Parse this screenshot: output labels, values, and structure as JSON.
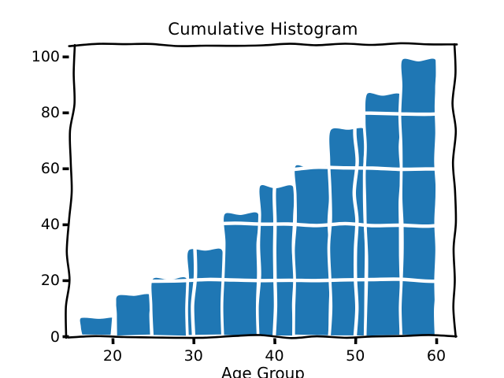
{
  "figure": {
    "title": "Cumulative Histogram",
    "xlabel": "Age Group",
    "colors": {
      "bar_fill": "#1f77b4",
      "bar_gap": "#ffffff",
      "grid_overlay": "#ffffff",
      "axis": "#000000",
      "background": "#ffffff",
      "text": "#000000"
    }
  },
  "chart_data": {
    "type": "bar",
    "subtype": "cumulative_histogram",
    "render_style": "xkcd_sketch",
    "title": "Cumulative Histogram",
    "xlabel": "Age Group",
    "ylabel": "",
    "bin_edges": [
      16,
      20.4,
      24.8,
      29.2,
      33.6,
      38,
      42.4,
      46.8,
      51.2,
      55.6,
      60
    ],
    "cumulative_counts": [
      7,
      15,
      21,
      31,
      44,
      54,
      61,
      74,
      87,
      99
    ],
    "xticks": [
      20,
      30,
      40,
      50,
      60
    ],
    "yticks": [
      0,
      20,
      40,
      60,
      80,
      100
    ],
    "xlim": [
      13.8,
      62.2
    ],
    "ylim": [
      0,
      104
    ],
    "legend": null,
    "grid": {
      "horizontal_at": [
        20,
        40,
        60,
        80
      ],
      "vertical_at": [
        20,
        30,
        40,
        50,
        60
      ],
      "color": "#ffffff",
      "drawn_over_bars": true
    }
  }
}
